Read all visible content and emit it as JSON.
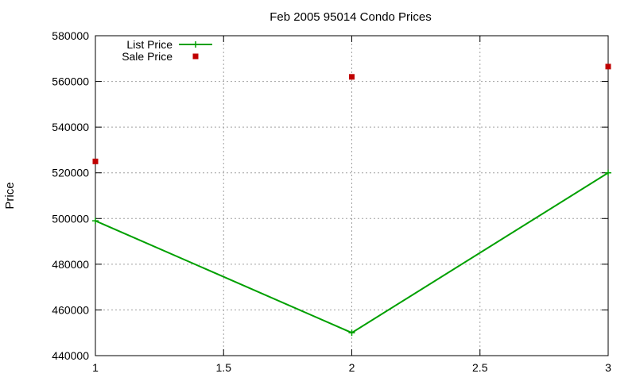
{
  "chart_data": {
    "type": "line",
    "title": "Feb 2005 95014 Condo Prices",
    "xlabel": "",
    "ylabel": "Price",
    "xlim": [
      1,
      3
    ],
    "ylim": [
      440000,
      580000
    ],
    "x_ticks": [
      1,
      1.5,
      2,
      2.5,
      3
    ],
    "x_tick_labels": [
      "1",
      "1.5",
      "2",
      "2.5",
      "3"
    ],
    "y_ticks": [
      440000,
      460000,
      480000,
      500000,
      520000,
      540000,
      560000,
      580000
    ],
    "y_tick_labels": [
      "440000",
      "460000",
      "480000",
      "500000",
      "520000",
      "540000",
      "560000",
      "580000"
    ],
    "grid": true,
    "legend_position": "top-left",
    "series": [
      {
        "name": "List Price",
        "style": "linespoints",
        "marker": "plus",
        "color": "#00a000",
        "x": [
          1,
          2,
          3
        ],
        "values": [
          499000,
          450000,
          520000
        ]
      },
      {
        "name": "Sale Price",
        "style": "points",
        "marker": "square",
        "color": "#c00000",
        "x": [
          1,
          2,
          3
        ],
        "values": [
          525000,
          562000,
          566500
        ]
      }
    ]
  }
}
